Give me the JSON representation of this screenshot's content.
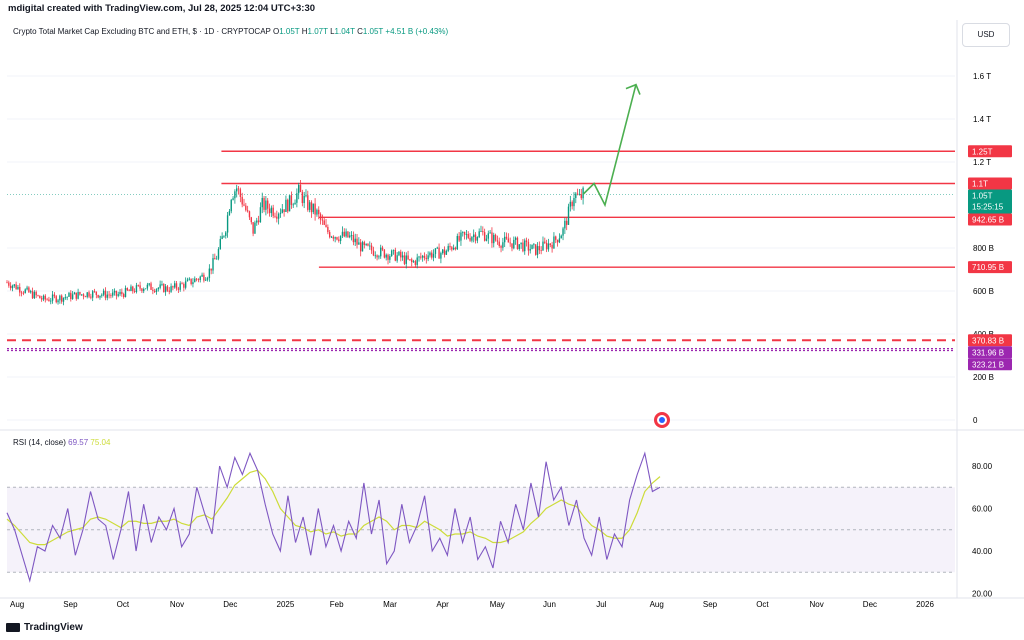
{
  "header": {
    "created_by": "mdigital created with TradingView.com, Jul 28, 2025 12:04 UTC+3:30"
  },
  "symbol": {
    "name": "Crypto Total Market Cap Excluding BTC and ETH, $ · 1D · CRYPTOCAP",
    "o_label": "O",
    "o": "1.05T",
    "h_label": "H",
    "h": "1.07T",
    "l_label": "L",
    "l": "1.04T",
    "c_label": "C",
    "c": "1.05T",
    "change": "+4.51 B (+0.43%)"
  },
  "currency": "USD",
  "footer": {
    "brand": "TradingView"
  },
  "colors": {
    "bull": "#089981",
    "bear": "#f23645",
    "level": "#f23645",
    "arrow": "#4caf50",
    "rsi": "#7e57c2",
    "rsi_ma": "#cddc39",
    "purple": "#9c27b0"
  },
  "chart_data": [
    {
      "type": "candlestick",
      "title": "Crypto Total Market Cap Excluding BTC and ETH, $ · 1D · CRYPTOCAP",
      "y_unit": "USD",
      "y_ticks": [
        {
          "v": 0,
          "label": "0"
        },
        {
          "v": 200,
          "label": "200 B"
        },
        {
          "v": 400,
          "label": "400 B"
        },
        {
          "v": 600,
          "label": "600 B"
        },
        {
          "v": 800,
          "label": "800 B"
        },
        {
          "v": 1200,
          "label": "1.2 T"
        },
        {
          "v": 1400,
          "label": "1.4 T"
        },
        {
          "v": 1600,
          "label": "1.6 T"
        }
      ],
      "x_labels": [
        "Aug",
        "Sep",
        "Oct",
        "Nov",
        "Dec",
        "2025",
        "Feb",
        "Mar",
        "Apr",
        "May",
        "Jun",
        "Jul",
        "Aug",
        "Sep",
        "Oct",
        "Nov",
        "Dec",
        "2026"
      ],
      "close_path_billions": [
        [
          0,
          640
        ],
        [
          10,
          600
        ],
        [
          20,
          560
        ],
        [
          30,
          570
        ],
        [
          45,
          590
        ],
        [
          60,
          580
        ],
        [
          75,
          620
        ],
        [
          90,
          610
        ],
        [
          100,
          640
        ],
        [
          110,
          680
        ],
        [
          115,
          760
        ],
        [
          120,
          900
        ],
        [
          123,
          1050
        ],
        [
          126,
          1080
        ],
        [
          130,
          1000
        ],
        [
          135,
          880
        ],
        [
          140,
          1000
        ],
        [
          148,
          970
        ],
        [
          155,
          1010
        ],
        [
          160,
          1060
        ],
        [
          165,
          1000
        ],
        [
          170,
          960
        ],
        [
          175,
          880
        ],
        [
          180,
          860
        ],
        [
          188,
          850
        ],
        [
          195,
          800
        ],
        [
          205,
          780
        ],
        [
          215,
          760
        ],
        [
          222,
          730
        ],
        [
          230,
          770
        ],
        [
          240,
          780
        ],
        [
          250,
          850
        ],
        [
          260,
          870
        ],
        [
          270,
          830
        ],
        [
          280,
          820
        ],
        [
          290,
          790
        ],
        [
          300,
          830
        ],
        [
          305,
          880
        ],
        [
          308,
          960
        ],
        [
          311,
          1050
        ],
        [
          314,
          1030
        ],
        [
          316,
          1050
        ]
      ],
      "levels": [
        {
          "value": 1250,
          "label": "1.25T",
          "color": "#f23645",
          "start_day": 122
        },
        {
          "value": 1100,
          "label": "1.1T",
          "color": "#f23645",
          "start_day": 122
        },
        {
          "value": 1050,
          "label": "1.05T",
          "sublabel": "15:25:15",
          "color": "#089981",
          "current": true
        },
        {
          "value": 942.65,
          "label": "942.65 B",
          "color": "#f23645",
          "start_day": 170
        },
        {
          "value": 710.95,
          "label": "710.95 B",
          "color": "#f23645",
          "start_day": 170
        },
        {
          "value": 370.83,
          "label": "370.83 B",
          "color": "#f23645",
          "dashed": true
        },
        {
          "value": 331.96,
          "label": "331.96 B",
          "color": "#9c27b0",
          "dotted": true
        },
        {
          "value": 323.21,
          "label": "323.21 B",
          "color": "#9c27b0",
          "dotted": true
        }
      ],
      "projection_path_billions": [
        [
          316,
          1050
        ],
        [
          322,
          1100
        ],
        [
          328,
          1000
        ],
        [
          345,
          1560
        ]
      ]
    },
    {
      "type": "line",
      "title": "RSI (14, close)",
      "legend": {
        "label": "RSI (14, close)",
        "rsi": "69.57",
        "ma": "75.04"
      },
      "y_ticks": [
        {
          "v": 20,
          "label": "20.00"
        },
        {
          "v": 40,
          "label": "40.00"
        },
        {
          "v": 60,
          "label": "60.00"
        },
        {
          "v": 80,
          "label": "80.00"
        }
      ],
      "band": [
        30,
        70
      ],
      "series": [
        {
          "name": "RSI",
          "values": [
            58,
            50,
            38,
            26,
            42,
            40,
            52,
            46,
            60,
            38,
            50,
            68,
            55,
            52,
            36,
            50,
            68,
            40,
            62,
            44,
            56,
            50,
            60,
            42,
            48,
            70,
            58,
            48,
            80,
            70,
            84,
            76,
            86,
            78,
            62,
            48,
            40,
            66,
            44,
            56,
            38,
            60,
            42,
            52,
            40,
            54,
            46,
            72,
            48,
            64,
            34,
            40,
            62,
            44,
            52,
            66,
            40,
            46,
            38,
            60,
            44,
            56,
            36,
            42,
            32,
            54,
            44,
            62,
            50,
            72,
            56,
            82,
            64,
            70,
            52,
            64,
            46,
            38,
            56,
            36,
            48,
            42,
            64,
            76,
            86,
            68,
            70
          ]
        },
        {
          "name": "RSI MA",
          "values": [
            55,
            52,
            48,
            44,
            43,
            43,
            45,
            47,
            49,
            50,
            51,
            55,
            56,
            55,
            53,
            51,
            54,
            54,
            53,
            53,
            54,
            54,
            55,
            53,
            52,
            56,
            57,
            55,
            60,
            65,
            71,
            74,
            77,
            78,
            74,
            68,
            60,
            56,
            52,
            51,
            49,
            50,
            48,
            49,
            47,
            48,
            48,
            52,
            54,
            56,
            54,
            50,
            52,
            52,
            51,
            54,
            52,
            50,
            47,
            48,
            48,
            49,
            47,
            46,
            44,
            44,
            45,
            47,
            49,
            53,
            56,
            60,
            62,
            64,
            62,
            61,
            56,
            52,
            50,
            47,
            46,
            46,
            50,
            58,
            68,
            72,
            75
          ]
        }
      ]
    }
  ]
}
